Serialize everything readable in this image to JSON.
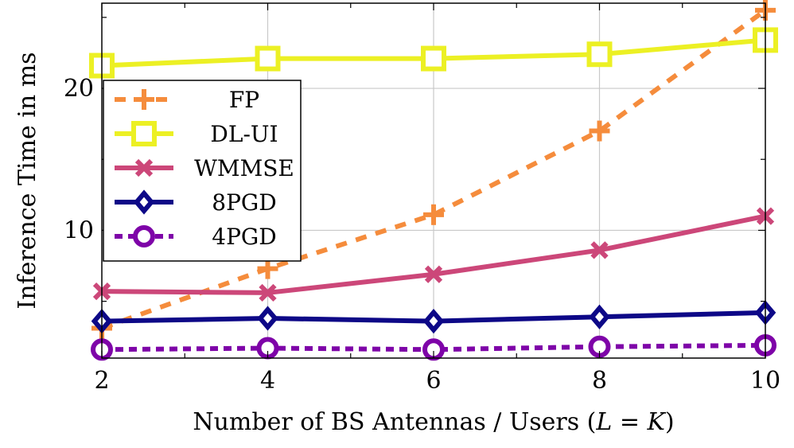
{
  "chart_data": {
    "type": "line",
    "xlabel_main": "Number of BS Antennas / Users (",
    "xlabel_math_L": "L",
    "xlabel_math_eq": " = ",
    "xlabel_math_K": "K",
    "xlabel_close": ")",
    "ylabel": "Inference Time in ms",
    "xlim": [
      2,
      10
    ],
    "ylim": [
      1,
      26
    ],
    "x_ticks": [
      2,
      4,
      6,
      8,
      10
    ],
    "y_ticks": [
      10,
      20
    ],
    "x_tick_labels": [
      "2",
      "4",
      "6",
      "8",
      "10"
    ],
    "y_tick_labels": [
      "10",
      "20"
    ],
    "grid": true,
    "legend_position": "upper-left",
    "series": [
      {
        "name": "FP",
        "color": "#f58c3c",
        "dash": "dotted",
        "marker": "plus",
        "x": [
          2,
          4,
          6,
          8,
          10
        ],
        "y": [
          3.1,
          7.3,
          11.1,
          17.0,
          25.5
        ]
      },
      {
        "name": "DL-UI",
        "color": "#ecf024",
        "dash": "solid",
        "marker": "square",
        "x": [
          2,
          4,
          6,
          8,
          10
        ],
        "y": [
          21.6,
          22.1,
          22.1,
          22.4,
          23.4
        ]
      },
      {
        "name": "WMMSE",
        "color": "#cc4779",
        "dash": "solid",
        "marker": "cross",
        "x": [
          2,
          4,
          6,
          8,
          10
        ],
        "y": [
          5.7,
          5.6,
          6.9,
          8.6,
          11.0
        ]
      },
      {
        "name": "8PGD",
        "color": "#0d0887",
        "dash": "solid",
        "marker": "diamond",
        "x": [
          2,
          4,
          6,
          8,
          10
        ],
        "y": [
          3.6,
          3.8,
          3.6,
          3.9,
          4.2
        ]
      },
      {
        "name": "4PGD",
        "color": "#7e03a8",
        "dash": "dashed",
        "marker": "circle",
        "x": [
          2,
          4,
          6,
          8,
          10
        ],
        "y": [
          1.6,
          1.7,
          1.6,
          1.8,
          1.9
        ]
      }
    ]
  }
}
